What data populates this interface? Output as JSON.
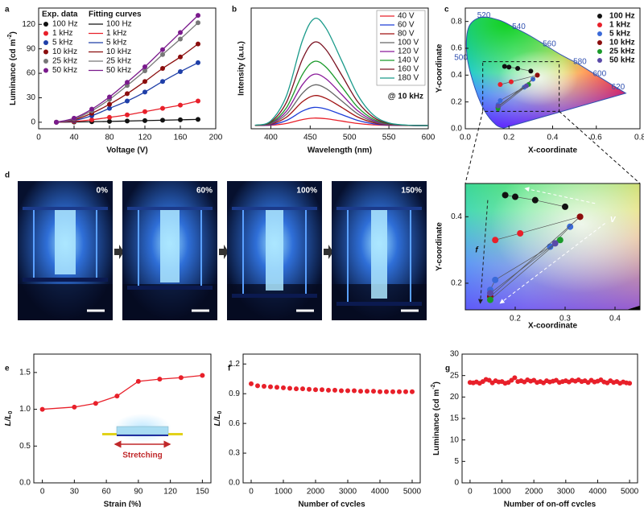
{
  "panels": [
    "a",
    "b",
    "c",
    "d",
    "e",
    "f",
    "g"
  ],
  "photos": {
    "labels": [
      "0%",
      "60%",
      "100%",
      "150%"
    ]
  },
  "chart_data": [
    {
      "type": "line",
      "markers": true,
      "smooth": true,
      "xlabel": "Voltage (V)",
      "ylabel": [
        "Luminance (cd m",
        "-2",
        ")"
      ],
      "ylabel_script": "super",
      "legend": "upper left",
      "legend_titles": [
        "Exp. data",
        "Fitting curves"
      ],
      "x": [
        20,
        40,
        60,
        80,
        100,
        120,
        140,
        160,
        180
      ],
      "xlim": [
        0,
        200
      ],
      "xticks": [
        0,
        40,
        80,
        120,
        160,
        200
      ],
      "ylim": [
        -8,
        140
      ],
      "yticks": [
        0,
        30,
        60,
        90,
        120
      ],
      "series": [
        {
          "name": "100 Hz",
          "color": "#111111",
          "values": [
            0,
            0.3,
            0.6,
            1,
            1.5,
            2,
            2.5,
            3,
            3.5
          ]
        },
        {
          "name": "1 kHz",
          "color": "#e8202a",
          "values": [
            0,
            1,
            3,
            6,
            9,
            13,
            17,
            21,
            26
          ]
        },
        {
          "name": "5 kHz",
          "color": "#1f3fa8",
          "values": [
            0,
            2,
            8,
            17,
            26,
            37,
            50,
            62,
            73
          ]
        },
        {
          "name": "10 kHz",
          "color": "#8b0d0d",
          "values": [
            0,
            3,
            11,
            22,
            35,
            50,
            66,
            80,
            96
          ]
        },
        {
          "name": "25 kHz",
          "color": "#777777",
          "values": [
            0,
            4,
            14,
            28,
            45,
            63,
            83,
            102,
            122
          ]
        },
        {
          "name": "50 kHz",
          "color": "#7a1a8c",
          "values": [
            0,
            5,
            16,
            31,
            49,
            68,
            89,
            110,
            131
          ]
        }
      ]
    },
    {
      "type": "line",
      "smooth": true,
      "xlabel": "Wavelength (nm)",
      "ylabel": "Intensity (a.u.)",
      "legend": "upper right",
      "annotations": [
        "@ 10 kHz"
      ],
      "x": [
        380,
        400,
        420,
        440,
        455,
        470,
        490,
        510,
        530,
        550,
        575,
        600
      ],
      "xlim": [
        375,
        600
      ],
      "xticks": [
        400,
        450,
        500,
        550,
        600
      ],
      "ylim": [
        -0.03,
        1.1
      ],
      "series": [
        {
          "name": "40 V",
          "color": "#e8202a",
          "values": [
            0,
            0.003,
            0.02,
            0.056,
            0.07,
            0.064,
            0.042,
            0.02,
            0.007,
            0.002,
            0,
            0
          ]
        },
        {
          "name": "60 V",
          "color": "#1f3fd8",
          "values": [
            0.001,
            0.007,
            0.048,
            0.135,
            0.17,
            0.155,
            0.103,
            0.049,
            0.017,
            0.004,
            0.001,
            0
          ]
        },
        {
          "name": "80 V",
          "color": "#a01010",
          "values": [
            0.001,
            0.012,
            0.079,
            0.222,
            0.28,
            0.255,
            0.17,
            0.081,
            0.028,
            0.007,
            0.001,
            0
          ]
        },
        {
          "name": "100 V",
          "color": "#666666",
          "values": [
            0.001,
            0.017,
            0.107,
            0.301,
            0.38,
            0.347,
            0.231,
            0.111,
            0.038,
            0.01,
            0.001,
            0
          ]
        },
        {
          "name": "120 V",
          "color": "#8a1a9a",
          "values": [
            0.001,
            0.021,
            0.135,
            0.381,
            0.48,
            0.438,
            0.291,
            0.14,
            0.048,
            0.012,
            0.001,
            0
          ]
        },
        {
          "name": "140 V",
          "color": "#1a9a2a",
          "values": [
            0.002,
            0.026,
            0.169,
            0.476,
            0.6,
            0.547,
            0.364,
            0.175,
            0.061,
            0.015,
            0.002,
            0
          ]
        },
        {
          "name": "160 V",
          "color": "#7a1020",
          "values": [
            0.002,
            0.034,
            0.22,
            0.619,
            0.78,
            0.711,
            0.473,
            0.227,
            0.079,
            0.02,
            0.002,
            0
          ]
        },
        {
          "name": "180 V",
          "color": "#1a9a8a",
          "values": [
            0.003,
            0.044,
            0.282,
            0.793,
            1,
            0.912,
            0.607,
            0.291,
            0.101,
            0.025,
            0.003,
            0
          ]
        }
      ]
    },
    {
      "type": "scatter",
      "connect": true,
      "xlabel": "X-coordinate",
      "ylabel": "Y-coordinate",
      "legend": "upper right",
      "locus_labels": [
        "520",
        "540",
        "560",
        "580",
        "600",
        "620",
        "500"
      ],
      "xlim": [
        0,
        0.8
      ],
      "xticks": [
        {
          "value": 0,
          "label": "0.0"
        },
        0.2,
        0.4,
        0.6,
        0.8
      ],
      "ylim": [
        0,
        0.9
      ],
      "yticks": [
        {
          "value": 0,
          "label": "0.0"
        },
        0.2,
        0.4,
        0.6,
        0.8
      ],
      "series": [
        {
          "name": "100 Hz",
          "color": "#111111",
          "x": [
            0.18,
            0.2,
            0.24,
            0.3
          ],
          "y": [
            0.465,
            0.46,
            0.45,
            0.43
          ]
        },
        {
          "name": "1 kHz",
          "color": "#e8202a",
          "x": [
            0.16,
            0.21,
            0.33
          ],
          "y": [
            0.33,
            0.35,
            0.4
          ]
        },
        {
          "name": "5 kHz",
          "color": "#3a6ad8",
          "x": [
            0.15,
            0.16,
            0.27,
            0.31
          ],
          "y": [
            0.18,
            0.21,
            0.31,
            0.37
          ]
        },
        {
          "name": "10 kHz",
          "color": "#8b0d0d",
          "x": [
            0.15,
            0.33
          ],
          "y": [
            0.16,
            0.4
          ]
        },
        {
          "name": "25 kHz",
          "color": "#1a9a2a",
          "x": [
            0.15,
            0.29
          ],
          "y": [
            0.15,
            0.33
          ]
        },
        {
          "name": "50 kHz",
          "color": "#5a4aa8",
          "x": [
            0.15,
            0.28
          ],
          "y": [
            0.17,
            0.32
          ]
        }
      ]
    },
    {
      "type": "scatter",
      "connect": true,
      "xlabel": "X-coordinate",
      "ylabel": "Y-coordinate",
      "annotations": [
        "V",
        "f"
      ],
      "xlim": [
        0.1,
        0.45
      ],
      "xticks": [
        0.2,
        0.3,
        0.4
      ],
      "ylim": [
        0.12,
        0.5
      ],
      "yticks": [
        0.2,
        0.4
      ]
    },
    {
      "type": "line",
      "markers": true,
      "xlabel": "Strain (%)",
      "ylabel": [
        "L/L",
        "0"
      ],
      "ylabel_script": "sub",
      "annotations": [
        "Stretching"
      ],
      "color": "#e8202a",
      "x": [
        0,
        30,
        50,
        70,
        90,
        110,
        130,
        150
      ],
      "values": [
        1.0,
        1.03,
        1.08,
        1.18,
        1.38,
        1.41,
        1.43,
        1.46
      ],
      "xlim": [
        -8,
        158
      ],
      "xticks": [
        0,
        30,
        60,
        90,
        120,
        150
      ],
      "ylim": [
        0,
        1.75
      ],
      "yticks": [
        {
          "value": 0,
          "label": "0.0"
        },
        0.5,
        {
          "value": 1,
          "label": "1.0"
        },
        1.5
      ]
    },
    {
      "type": "scatter",
      "xlabel": "Number of cycles",
      "ylabel": [
        "L/L",
        "0"
      ],
      "ylabel_script": "sub",
      "color": "#e8202a",
      "x": [
        0,
        200,
        400,
        600,
        800,
        1000,
        1200,
        1400,
        1600,
        1800,
        2000,
        2200,
        2400,
        2600,
        2800,
        3000,
        3200,
        3400,
        3600,
        3800,
        4000,
        4200,
        4400,
        4600,
        4800,
        5000
      ],
      "values": [
        1.0,
        0.98,
        0.975,
        0.97,
        0.965,
        0.96,
        0.955,
        0.95,
        0.95,
        0.945,
        0.94,
        0.94,
        0.935,
        0.935,
        0.93,
        0.93,
        0.93,
        0.925,
        0.925,
        0.925,
        0.92,
        0.92,
        0.92,
        0.92,
        0.92,
        0.92
      ],
      "xlim": [
        -250,
        5250
      ],
      "xticks": [
        0,
        1000,
        2000,
        3000,
        4000,
        5000
      ],
      "ylim": [
        0,
        1.3
      ],
      "yticks": [
        {
          "value": 0,
          "label": "0.0"
        },
        0.3,
        0.6,
        0.9,
        1.2
      ]
    },
    {
      "type": "scatter",
      "xlabel": "Number of on-off cycles",
      "ylabel": [
        "Luminance (cd m",
        "-2",
        ")"
      ],
      "ylabel_script": "super",
      "color": "#e8202a",
      "x": [
        0,
        100,
        200,
        300,
        400,
        500,
        600,
        700,
        800,
        900,
        1000,
        1100,
        1200,
        1300,
        1400,
        1500,
        1600,
        1700,
        1800,
        1900,
        2000,
        2100,
        2200,
        2300,
        2400,
        2500,
        2600,
        2700,
        2800,
        2900,
        3000,
        3100,
        3200,
        3300,
        3400,
        3500,
        3600,
        3700,
        3800,
        3900,
        4000,
        4100,
        4200,
        4300,
        4400,
        4500,
        4600,
        4700,
        4800,
        4900,
        5000
      ],
      "values": [
        23.4,
        23.3,
        23.5,
        23.2,
        23.6,
        24.1,
        23.9,
        23.3,
        23.8,
        23.5,
        23.6,
        23.2,
        23.4,
        23.9,
        24.5,
        23.6,
        23.8,
        23.5,
        24.0,
        23.7,
        23.9,
        23.4,
        23.6,
        23.3,
        23.8,
        23.5,
        23.7,
        23.9,
        23.4,
        23.6,
        23.8,
        23.5,
        23.9,
        23.7,
        24.0,
        23.6,
        23.8,
        23.4,
        23.9,
        23.5,
        23.7,
        24.0,
        23.5,
        23.3,
        23.8,
        23.4,
        23.6,
        23.2,
        23.5,
        23.3,
        23.2
      ],
      "xlim": [
        -250,
        5250
      ],
      "xticks": [
        0,
        1000,
        2000,
        3000,
        4000,
        5000
      ],
      "ylim": [
        0,
        30
      ],
      "yticks": [
        0,
        5,
        10,
        15,
        20,
        25,
        30
      ]
    }
  ]
}
